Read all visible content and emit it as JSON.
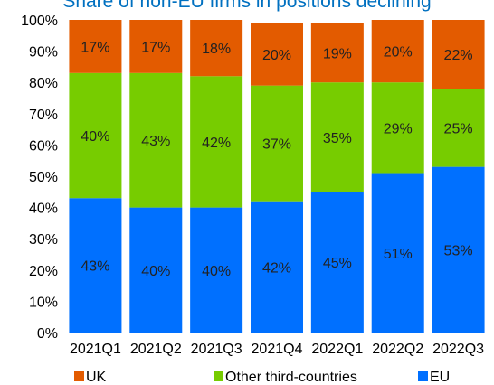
{
  "chart_data": {
    "type": "bar",
    "stacked": true,
    "title": "Share of non-EU firms in positions declining",
    "categories": [
      "2021Q1",
      "2021Q2",
      "2021Q3",
      "2021Q4",
      "2022Q1",
      "2022Q2",
      "2022Q3"
    ],
    "series": [
      {
        "name": "EU",
        "color": "#0070FF",
        "values": [
          43,
          40,
          40,
          42,
          45,
          51,
          53
        ],
        "labels": [
          "43%",
          "40%",
          "40%",
          "42%",
          "45%",
          "51%",
          "53%"
        ]
      },
      {
        "name": "Other third-countries",
        "color": "#77CC00",
        "values": [
          40,
          43,
          42,
          37,
          35,
          29,
          25
        ],
        "labels": [
          "40%",
          "43%",
          "42%",
          "37%",
          "35%",
          "29%",
          "25%"
        ]
      },
      {
        "name": "UK",
        "color": "#E35B00",
        "values": [
          17,
          17,
          18,
          20,
          19,
          20,
          22
        ],
        "labels": [
          "17%",
          "17%",
          "18%",
          "20%",
          "19%",
          "20%",
          "22%"
        ]
      }
    ],
    "legend_order": [
      "UK",
      "Other third-countries",
      "EU"
    ],
    "legend_position": "bottom",
    "ylim": [
      0,
      100
    ],
    "yticks": [
      "0%",
      "10%",
      "20%",
      "30%",
      "40%",
      "50%",
      "60%",
      "70%",
      "80%",
      "90%",
      "100%"
    ],
    "xlabel": "",
    "ylabel": "",
    "grid": false,
    "title_color": "#0070C0"
  }
}
